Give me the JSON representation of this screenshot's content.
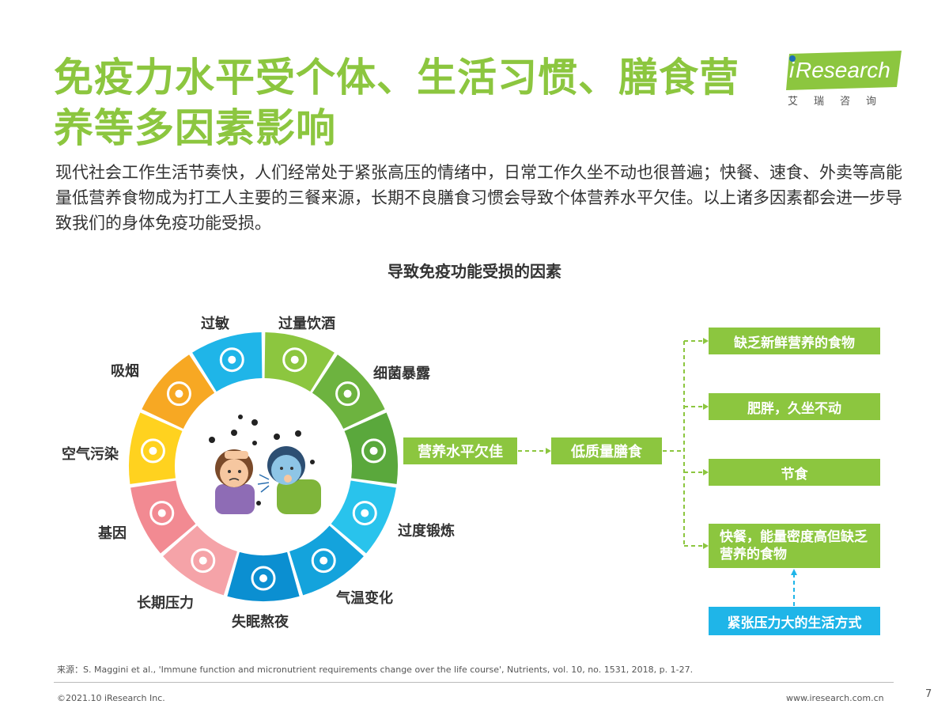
{
  "title": "免疫力水平受个体、生活习惯、膳食营养等多因素影响",
  "logo": {
    "name": "iResearch",
    "subtitle": "艾瑞咨询"
  },
  "intro": "现代社会工作生活节奏快，人们经常处于紧张高压的情绪中，日常工作久坐不动也很普遍；快餐、速食、外卖等高能量低营养食物成为打工人主要的三餐来源，长期不良膳食习惯会导致个体营养水平欠佳。以上诸多因素都会进一步导致我们的身体免疫功能受损。",
  "diagram": {
    "title": "导致免疫功能受损的因素",
    "segments": [
      {
        "label": "过敏",
        "icon": "allergy-icon",
        "color": "#1fb5e8"
      },
      {
        "label": "过量饮酒",
        "icon": "beer-icon",
        "color": "#8cc63f"
      },
      {
        "label": "细菌暴露",
        "icon": "bacteria-icon",
        "color": "#6db33f"
      },
      {
        "label": "营养水平欠佳",
        "icon": "food-cloche-icon",
        "color": "#5aa83c"
      },
      {
        "label": "过度锻炼",
        "icon": "running-icon",
        "color": "#29c3ec"
      },
      {
        "label": "气温变化",
        "icon": "thermometer-icon",
        "color": "#14a3dc"
      },
      {
        "label": "失眠熬夜",
        "icon": "moon-icon",
        "color": "#0b8fd1"
      },
      {
        "label": "长期压力",
        "icon": "heart-icon",
        "color": "#f5a3a8"
      },
      {
        "label": "基因",
        "icon": "dna-icon",
        "color": "#f28a92"
      },
      {
        "label": "空气污染",
        "icon": "factory-icon",
        "color": "#ffd21f"
      },
      {
        "label": "吸烟",
        "icon": "cigarette-icon",
        "color": "#f7a823"
      }
    ],
    "center_icon": "sick-people-icon",
    "flow": {
      "nutrition": "营养水平欠佳",
      "low_quality": "低质量膳食",
      "causes": [
        "缺乏新鲜营养的食物",
        "肥胖，久坐不动",
        "节食",
        "快餐，能量密度高但缺乏营养的食物"
      ],
      "lifestyle": "紧张压力大的生活方式"
    }
  },
  "source": "来源：S. Maggini et al., 'Immune function and micronutrient requirements change over the life course', Nutrients, vol. 10, no. 1531, 2018, p. 1-27.",
  "copyright": "©2021.10 iResearch Inc.",
  "website": "www.iresearch.com.cn",
  "page_number": "7",
  "colors": {
    "accent_green": "#8cc63f",
    "accent_blue": "#1fb5e8"
  }
}
